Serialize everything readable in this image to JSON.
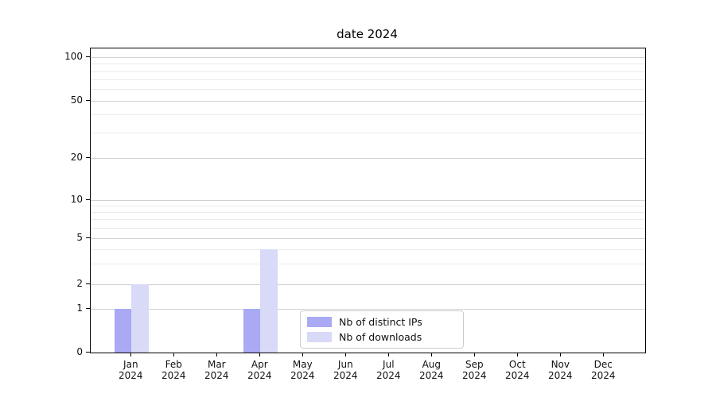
{
  "chart_data": {
    "type": "bar",
    "title": "date 2024",
    "categories": [
      {
        "month": "Jan",
        "year": "2024"
      },
      {
        "month": "Feb",
        "year": "2024"
      },
      {
        "month": "Mar",
        "year": "2024"
      },
      {
        "month": "Apr",
        "year": "2024"
      },
      {
        "month": "May",
        "year": "2024"
      },
      {
        "month": "Jun",
        "year": "2024"
      },
      {
        "month": "Jul",
        "year": "2024"
      },
      {
        "month": "Aug",
        "year": "2024"
      },
      {
        "month": "Sep",
        "year": "2024"
      },
      {
        "month": "Oct",
        "year": "2024"
      },
      {
        "month": "Nov",
        "year": "2024"
      },
      {
        "month": "Dec",
        "year": "2024"
      }
    ],
    "series": [
      {
        "name": "Nb of distinct IPs",
        "color": "#a9a9f4",
        "values": [
          1,
          0,
          0,
          1,
          0,
          0,
          0,
          0,
          0,
          0,
          0,
          0
        ]
      },
      {
        "name": "Nb of downloads",
        "color": "#d9d9f8",
        "values": [
          2,
          0,
          0,
          4,
          0,
          0,
          0,
          0,
          0,
          0,
          0,
          0
        ]
      }
    ],
    "y_axis": {
      "scale": "symlog",
      "ticks": [
        0,
        1,
        2,
        5,
        10,
        20,
        50,
        100
      ],
      "range": [
        0,
        100
      ]
    },
    "xlabel": "",
    "ylabel": "",
    "grid": "on",
    "legend_position": "lower center"
  },
  "colors": {
    "background": "#ffffff",
    "axis": "#000000",
    "grid_major": "#d2d2d2",
    "grid_minor": "#ebebeb",
    "legend_border": "#cccccc"
  }
}
